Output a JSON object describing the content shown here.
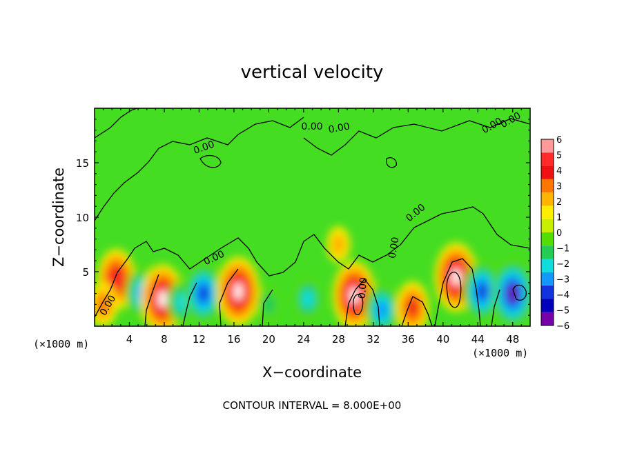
{
  "chart_data": {
    "type": "heatmap",
    "title": "vertical velocity",
    "xlabel": "X−coordinate",
    "ylabel": "Z−coordinate",
    "x_unit_left": "(×1000 m)",
    "x_unit_right": "(×1000 m)",
    "xlim": [
      0,
      50
    ],
    "ylim": [
      0,
      20
    ],
    "x_ticks": [
      4,
      8,
      12,
      16,
      20,
      24,
      28,
      32,
      36,
      40,
      44,
      48
    ],
    "y_ticks": [
      5,
      10,
      15
    ],
    "colorbar": {
      "min": -6,
      "max": 6,
      "labels": [
        "6",
        "5",
        "4",
        "3",
        "2",
        "1",
        "0",
        "−1",
        "−2",
        "−3",
        "−4",
        "−5",
        "−6"
      ],
      "colors": [
        "#ff9a9a",
        "#ff2a2a",
        "#ee1111",
        "#ff7700",
        "#ffb400",
        "#ffee00",
        "#c8ee00",
        "#55dd00",
        "#22cc55",
        "#11dddd",
        "#1199ff",
        "#1133dd",
        "#0000bb",
        "#7700aa"
      ]
    },
    "features": [
      {
        "x": 2.5,
        "z": 4.3,
        "w": 5
      },
      {
        "x": 5.5,
        "z": 3.0,
        "w": -4
      },
      {
        "x": 1.0,
        "z": 2.0,
        "w": 3
      },
      {
        "x": 7.8,
        "z": 2.5,
        "w": 6
      },
      {
        "x": 10.0,
        "z": 2.2,
        "w": -3
      },
      {
        "x": 12.5,
        "z": 3.0,
        "w": -5
      },
      {
        "x": 16.5,
        "z": 3.2,
        "w": 6
      },
      {
        "x": 20.0,
        "z": 2.0,
        "w": -2
      },
      {
        "x": 24.5,
        "z": 2.5,
        "w": -3
      },
      {
        "x": 28.0,
        "z": 7.5,
        "w": 2
      },
      {
        "x": 29.8,
        "z": 2.8,
        "w": 6
      },
      {
        "x": 33.0,
        "z": 1.5,
        "w": -4
      },
      {
        "x": 36.5,
        "z": 1.7,
        "w": 4
      },
      {
        "x": 41.5,
        "z": 4.5,
        "w": 6
      },
      {
        "x": 44.5,
        "z": 3.2,
        "w": -5
      },
      {
        "x": 48.0,
        "z": 3.0,
        "w": -6
      }
    ],
    "contour_labels": [
      "0.00",
      "0.00",
      "0.00",
      "0.00",
      "0.00",
      "0.00",
      "0.00",
      "0.00",
      "0.00",
      "0.00"
    ],
    "annotation": "CONTOUR INTERVAL =  8.000E+00"
  }
}
